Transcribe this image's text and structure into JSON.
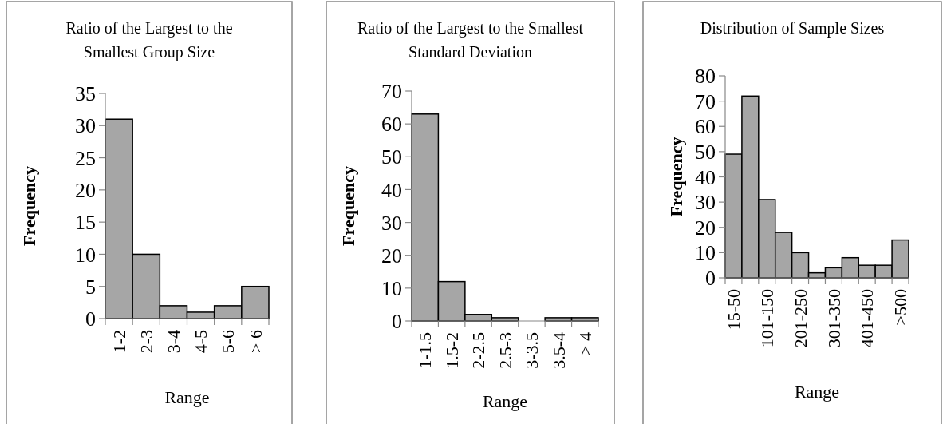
{
  "chart_data": [
    {
      "type": "bar",
      "title": "Ratio of the Largest to the Smallest Group Size",
      "xlabel": "Range",
      "ylabel": "Frequency",
      "categories": [
        "1-2",
        "2-3",
        "3-4",
        "4-5",
        "5-6",
        "> 6"
      ],
      "values": [
        31,
        10,
        2,
        1,
        2,
        5
      ],
      "color": "#a6a6a6",
      "ylim": [
        0,
        35
      ],
      "yticks": [
        0,
        5,
        10,
        15,
        20,
        25,
        30,
        35
      ],
      "grid": false
    },
    {
      "type": "bar",
      "title": "Ratio of the Largest to the Smallest Standard Deviation",
      "xlabel": "Range",
      "ylabel": "Frequency",
      "categories": [
        "1-1.5",
        "1.5-2",
        "2-2.5",
        "2.5-3",
        "3-3.5",
        "3.5-4",
        "> 4"
      ],
      "values": [
        63,
        12,
        2,
        1,
        0,
        1,
        1
      ],
      "color": "#a6a6a6",
      "ylim": [
        0,
        70
      ],
      "yticks": [
        0,
        10,
        20,
        30,
        40,
        50,
        60,
        70
      ],
      "grid": false
    },
    {
      "type": "bar",
      "title": "Distribution of Sample Sizes",
      "xlabel": "Range",
      "ylabel": "Frequency",
      "categories": [
        "15-50",
        null,
        "101-150",
        null,
        "201-250",
        null,
        "301-350",
        null,
        "401-450",
        null,
        ">500"
      ],
      "values": [
        49,
        72,
        31,
        18,
        10,
        2,
        4,
        8,
        5,
        5,
        15
      ],
      "color": "#a6a6a6",
      "ylim": [
        0,
        80
      ],
      "yticks": [
        0,
        10,
        20,
        30,
        40,
        50,
        60,
        70,
        80
      ],
      "grid": false
    }
  ]
}
